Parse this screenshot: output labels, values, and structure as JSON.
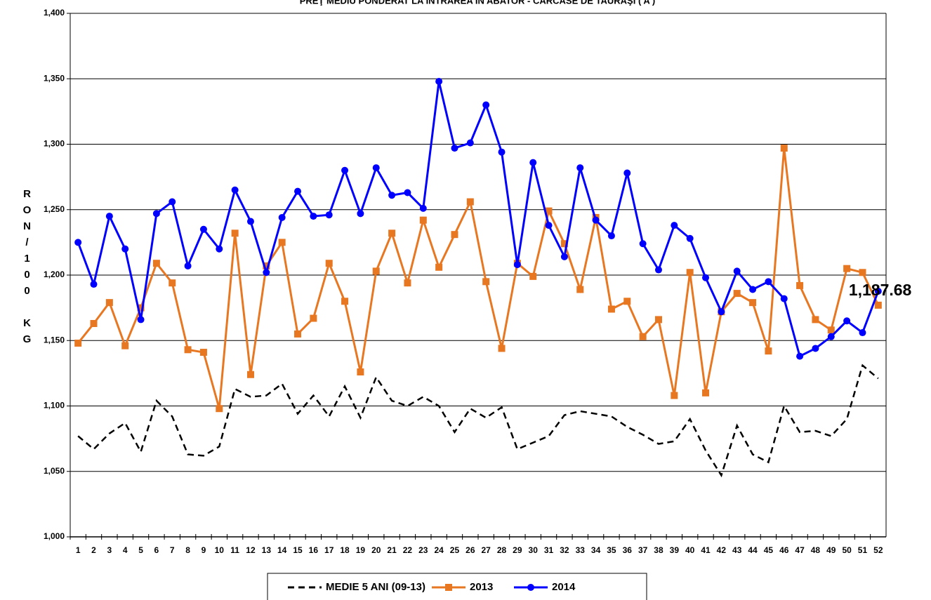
{
  "chart_data": {
    "type": "line",
    "title": "PREŢ MEDIU PONDERAT LA INTRAREA ÎN ABATOR - CARCASE DE TAURAŞI ( A )",
    "y_label": "RON/100 KG",
    "categories": [
      "1",
      "2",
      "3",
      "4",
      "5",
      "6",
      "7",
      "8",
      "9",
      "10",
      "11",
      "12",
      "13",
      "14",
      "15",
      "16",
      "17",
      "18",
      "19",
      "20",
      "21",
      "22",
      "23",
      "24",
      "25",
      "26",
      "27",
      "28",
      "29",
      "30",
      "31",
      "32",
      "33",
      "34",
      "35",
      "36",
      "37",
      "38",
      "39",
      "40",
      "41",
      "42",
      "43",
      "44",
      "45",
      "46",
      "47",
      "48",
      "49",
      "50",
      "51",
      "52"
    ],
    "series": [
      {
        "name": "MEDIE 5 ANI (09-13)",
        "color": "#000000",
        "dashed": true,
        "marker": null,
        "values": [
          1077,
          1067,
          1079,
          1087,
          1065,
          1104,
          1092,
          1063,
          1062,
          1069,
          1113,
          1107,
          1108,
          1117,
          1094,
          1108,
          1092,
          1115,
          1091,
          1122,
          1104,
          1100,
          1107,
          1100,
          1080,
          1098,
          1091,
          1099,
          1067,
          1072,
          1077,
          1093,
          1096,
          1094,
          1092,
          1084,
          1078,
          1071,
          1073,
          1090,
          1066,
          1047,
          1085,
          1063,
          1057,
          1100,
          1080,
          1081,
          1077,
          1090,
          1131,
          1121
        ]
      },
      {
        "name": "2013",
        "color": "#E87722",
        "dashed": false,
        "marker": "square",
        "values": [
          1148,
          1163,
          1179,
          1146,
          1175,
          1209,
          1194,
          1143,
          1141,
          1098,
          1232,
          1124,
          1207,
          1225,
          1155,
          1167,
          1209,
          1180,
          1126,
          1203,
          1232,
          1194,
          1242,
          1206,
          1231,
          1256,
          1195,
          1144,
          1209,
          1199,
          1249,
          1224,
          1189,
          1244,
          1174,
          1180,
          1153,
          1166,
          1108,
          1202,
          1110,
          1172,
          1186,
          1179,
          1142,
          1297,
          1192,
          1166,
          1158,
          1205,
          1202,
          1177
        ]
      },
      {
        "name": "2014",
        "color": "#0000FF",
        "dashed": false,
        "marker": "circle",
        "values": [
          1225,
          1193,
          1245,
          1220,
          1166,
          1247,
          1256,
          1207,
          1235,
          1220,
          1265,
          1241,
          1202,
          1244,
          1264,
          1245,
          1246,
          1280,
          1247,
          1282,
          1261,
          1263,
          1251,
          1348,
          1297,
          1301,
          1330,
          1294,
          1208,
          1286,
          1238,
          1214,
          1282,
          1242,
          1230,
          1278,
          1224,
          1204,
          1238,
          1228,
          1198,
          1172,
          1203,
          1189,
          1195,
          1182,
          1138,
          1144,
          1153,
          1165,
          1156,
          1187.68
        ],
        "value_labels": [
          null,
          null,
          null,
          null,
          null,
          null,
          null,
          null,
          null,
          null,
          null,
          null,
          null,
          null,
          null,
          null,
          null,
          null,
          null,
          null,
          null,
          null,
          null,
          null,
          null,
          null,
          null,
          null,
          null,
          null,
          null,
          null,
          null,
          null,
          null,
          null,
          null,
          null,
          null,
          null,
          null,
          null,
          null,
          null,
          null,
          null,
          null,
          null,
          null,
          null,
          null,
          "1,187.68"
        ]
      }
    ],
    "ylim": [
      1000,
      1400
    ],
    "yticks": [
      {
        "value": 1000,
        "label": "1,000"
      },
      {
        "value": 1050,
        "label": "1,050"
      },
      {
        "value": 1100,
        "label": "1,100"
      },
      {
        "value": 1150,
        "label": "1,150"
      },
      {
        "value": 1200,
        "label": "1,200"
      },
      {
        "value": 1250,
        "label": "1,250"
      },
      {
        "value": 1300,
        "label": "1,300"
      },
      {
        "value": 1350,
        "label": "1,350"
      },
      {
        "value": 1400,
        "label": "1,400"
      }
    ],
    "grid": true,
    "legend": "bottom"
  }
}
